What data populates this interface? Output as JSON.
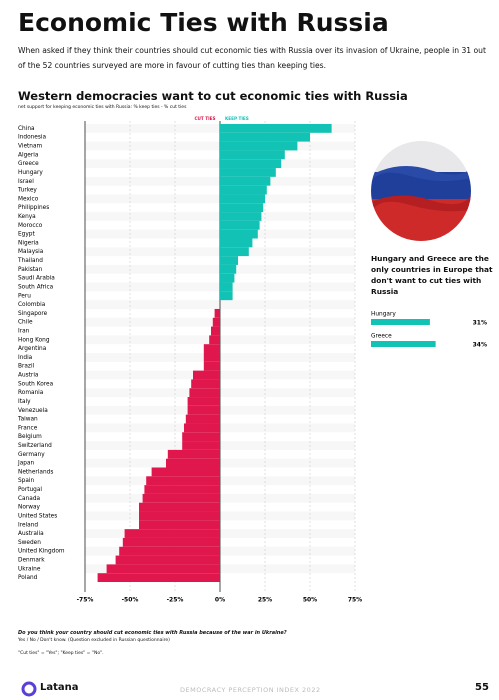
{
  "header": {
    "title": "Economic Ties with Russia",
    "intro": "When asked if they think their countries should cut economic ties with Russia over its invasion of Ukraine, people in 31 out of the 52 countries surveyed are more in favour of cutting ties than keeping ties."
  },
  "chart_data": [
    {
      "type": "diverging-bar",
      "title": "Western democracies want to cut economic ties with Russia",
      "subtitle": "net support for keeping economic ties with Russia: % keep ties - % cut ties",
      "legend": [
        {
          "name": "CUT TIES",
          "color": "#e0174c"
        },
        {
          "name": "KEEP TIES",
          "color": "#12c2b4"
        }
      ],
      "categories": [
        "China",
        "Indonesia",
        "Vietnam",
        "Algeria",
        "Greece",
        "Hungary",
        "Israel",
        "Turkey",
        "Mexico",
        "Philippines",
        "Kenya",
        "Morocco",
        "Egypt",
        "Nigeria",
        "Malaysia",
        "Thailand",
        "Pakistan",
        "Saudi Arabia",
        "South Africa",
        "Peru",
        "Colombia",
        "Singapore",
        "Chile",
        "Iran",
        "Hong Kong",
        "Argentina",
        "India",
        "Brazil",
        "Austria",
        "South Korea",
        "Romania",
        "Italy",
        "Venezuela",
        "Taiwan",
        "France",
        "Belgium",
        "Switzerland",
        "Germany",
        "Japan",
        "Netherlands",
        "Spain",
        "Portugal",
        "Canada",
        "Norway",
        "United States",
        "Ireland",
        "Australia",
        "Sweden",
        "United Kingdom",
        "Denmark",
        "Ukraine",
        "Poland"
      ],
      "values": [
        62,
        50,
        43,
        36,
        34,
        31,
        28,
        26,
        25,
        24,
        23,
        22,
        21,
        18,
        16,
        10,
        9,
        8,
        7,
        7,
        0,
        -3,
        -4,
        -5,
        -6,
        -9,
        -9,
        -9,
        -15,
        -16,
        -17,
        -18,
        -18,
        -19,
        -20,
        -21,
        -21,
        -29,
        -30,
        -38,
        -41,
        -42,
        -43,
        -45,
        -45,
        -45,
        -53,
        -54,
        -56,
        -58,
        -63,
        -68
      ],
      "positive_color": "#12c2b4",
      "negative_color": "#e0174c",
      "xlim": [
        -75,
        75
      ],
      "xticks": [
        {
          "value": -75,
          "label": "-75%"
        },
        {
          "value": -50,
          "label": "-50%"
        },
        {
          "value": -25,
          "label": "-25%"
        },
        {
          "value": 0,
          "label": "0%"
        },
        {
          "value": 25,
          "label": "25%"
        },
        {
          "value": 50,
          "label": "50%"
        },
        {
          "value": 75,
          "label": "75%"
        }
      ],
      "grid": true
    },
    {
      "type": "bar-horizontal",
      "title": "Hungary and Greece are the only countries in Europe that don't want to cut ties with Russia",
      "categories": [
        "Hungary",
        "Greece"
      ],
      "values": [
        31,
        34
      ],
      "value_labels": [
        "31%",
        "34%"
      ],
      "color": "#12c2b4"
    }
  ],
  "notes": {
    "question": "Do you think your country should cut economic ties with Russia because of the war in Ukraine?",
    "answers": "Yes / No / Don't know. (Question excluded in Russian questionnaire)",
    "definition": "\"Cut ties\" = \"Yes\"; \"Keep ties\" = \"No\"."
  },
  "footer": {
    "brand": "Latana",
    "report": "DEMOCRACY PERCEPTION INDEX 2022",
    "page": "55"
  }
}
